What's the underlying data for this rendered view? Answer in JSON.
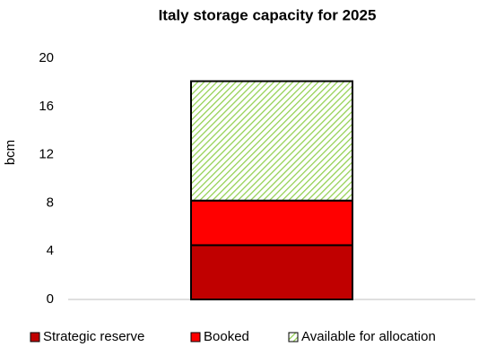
{
  "chart_data": {
    "type": "stacked_bar",
    "title": "Italy storage capacity for 2025",
    "y_label": "bcm",
    "categories": [
      null
    ],
    "series": [
      {
        "name": "Strategic reserve",
        "color": "#c00000",
        "values": [
          4.5
        ]
      },
      {
        "name": "Booked",
        "color": "#ff0000",
        "values": [
          3.7
        ]
      },
      {
        "name": "Available for allocation",
        "color": "#92d050",
        "hatch": true,
        "values": [
          9.9
        ]
      }
    ],
    "ylim": [
      0,
      20
    ],
    "yticks": [
      0,
      4,
      8,
      12,
      16,
      20
    ],
    "grid": false,
    "legend": "bottom"
  }
}
